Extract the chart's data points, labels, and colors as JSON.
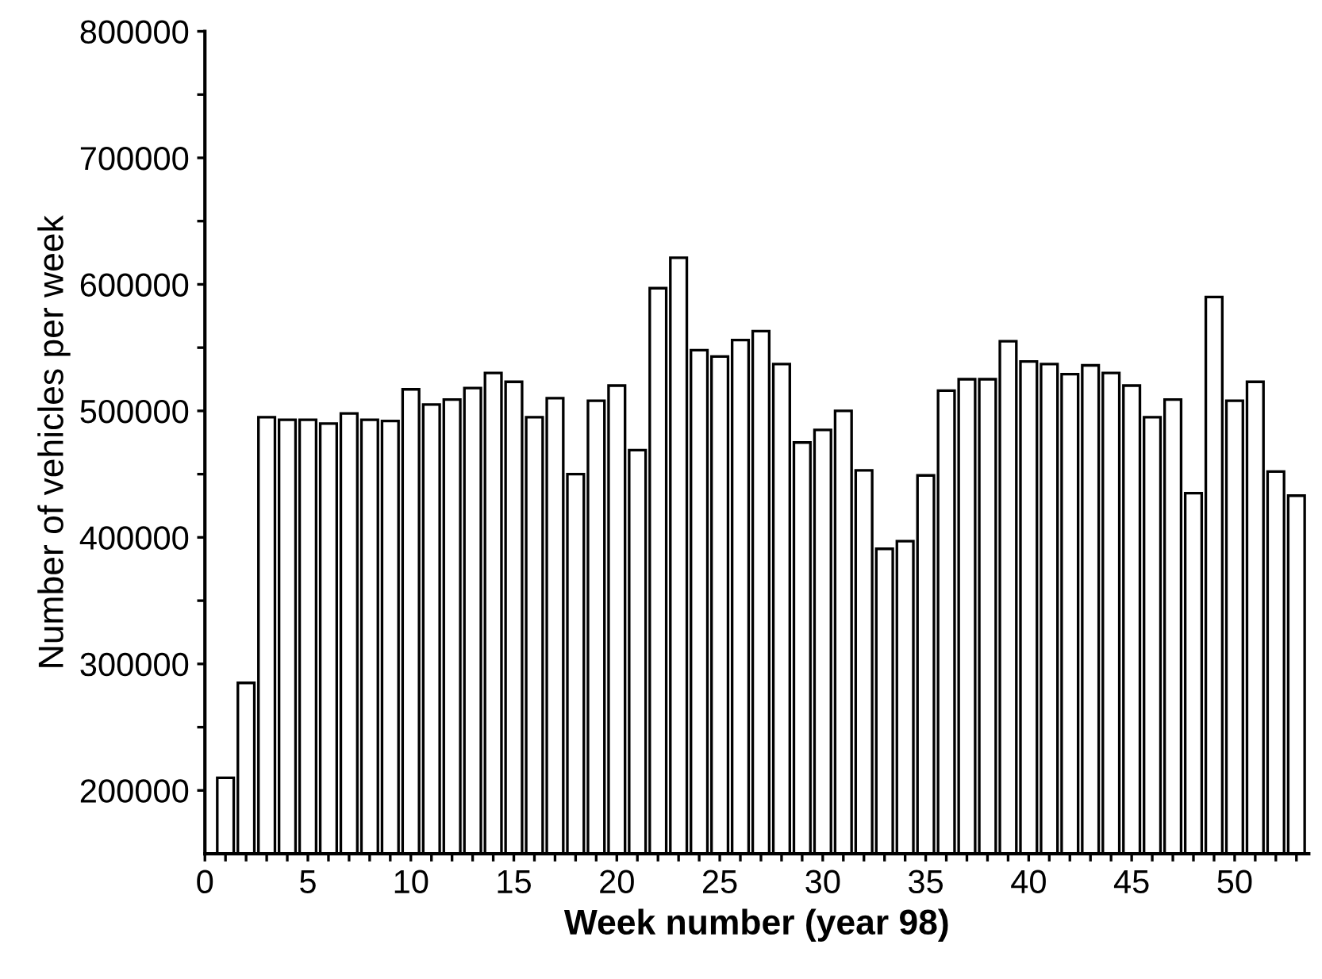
{
  "chart_data": {
    "type": "bar",
    "xlabel": "Week number (year 98)",
    "ylabel": "Number of vehicles per week",
    "x": [
      1,
      2,
      3,
      4,
      5,
      6,
      7,
      8,
      9,
      10,
      11,
      12,
      13,
      14,
      15,
      16,
      17,
      18,
      19,
      20,
      21,
      22,
      23,
      24,
      25,
      26,
      27,
      28,
      29,
      30,
      31,
      32,
      33,
      34,
      35,
      36,
      37,
      38,
      39,
      40,
      41,
      42,
      43,
      44,
      45,
      46,
      47,
      48,
      49,
      50,
      51,
      52,
      53
    ],
    "values": [
      210000,
      285000,
      495000,
      493000,
      493000,
      490000,
      498000,
      493000,
      492000,
      517000,
      505000,
      509000,
      518000,
      530000,
      523000,
      495000,
      510000,
      450000,
      508000,
      520000,
      469000,
      597000,
      621000,
      548000,
      543000,
      556000,
      563000,
      537000,
      475000,
      485000,
      500000,
      453000,
      391000,
      397000,
      449000,
      516000,
      525000,
      525000,
      555000,
      539000,
      537000,
      529000,
      536000,
      530000,
      520000,
      495000,
      509000,
      435000,
      590000,
      508000,
      523000,
      452000,
      433000
    ],
    "color": "#ffffff",
    "xlim": [
      0,
      53.6
    ],
    "ylim": [
      150000,
      800000
    ],
    "xticks": [
      0,
      {
        "value": 1,
        "label": null
      },
      {
        "value": 2,
        "label": null
      },
      {
        "value": 3,
        "label": null
      },
      {
        "value": 4,
        "label": null
      },
      5,
      {
        "value": 6,
        "label": null
      },
      {
        "value": 7,
        "label": null
      },
      {
        "value": 8,
        "label": null
      },
      {
        "value": 9,
        "label": null
      },
      10,
      {
        "value": 11,
        "label": null
      },
      {
        "value": 12,
        "label": null
      },
      {
        "value": 13,
        "label": null
      },
      {
        "value": 14,
        "label": null
      },
      15,
      {
        "value": 16,
        "label": null
      },
      {
        "value": 17,
        "label": null
      },
      {
        "value": 18,
        "label": null
      },
      {
        "value": 19,
        "label": null
      },
      20,
      {
        "value": 21,
        "label": null
      },
      {
        "value": 22,
        "label": null
      },
      {
        "value": 23,
        "label": null
      },
      {
        "value": 24,
        "label": null
      },
      25,
      {
        "value": 26,
        "label": null
      },
      {
        "value": 27,
        "label": null
      },
      {
        "value": 28,
        "label": null
      },
      {
        "value": 29,
        "label": null
      },
      30,
      {
        "value": 31,
        "label": null
      },
      {
        "value": 32,
        "label": null
      },
      {
        "value": 33,
        "label": null
      },
      {
        "value": 34,
        "label": null
      },
      35,
      {
        "value": 36,
        "label": null
      },
      {
        "value": 37,
        "label": null
      },
      {
        "value": 38,
        "label": null
      },
      {
        "value": 39,
        "label": null
      },
      40,
      {
        "value": 41,
        "label": null
      },
      {
        "value": 42,
        "label": null
      },
      {
        "value": 43,
        "label": null
      },
      {
        "value": 44,
        "label": null
      },
      45,
      {
        "value": 46,
        "label": null
      },
      {
        "value": 47,
        "label": null
      },
      {
        "value": 48,
        "label": null
      },
      {
        "value": 49,
        "label": null
      },
      50,
      {
        "value": 51,
        "label": null
      },
      {
        "value": 52,
        "label": null
      },
      {
        "value": 53,
        "label": null
      }
    ],
    "yticks": [
      200000,
      {
        "value": 250000,
        "label": null
      },
      300000,
      {
        "value": 350000,
        "label": null
      },
      400000,
      {
        "value": 450000,
        "label": null
      },
      500000,
      {
        "value": 550000,
        "label": null
      },
      600000,
      {
        "value": 650000,
        "label": null
      },
      700000,
      {
        "value": 750000,
        "label": null
      },
      800000
    ],
    "grid": false,
    "legend": false
  }
}
